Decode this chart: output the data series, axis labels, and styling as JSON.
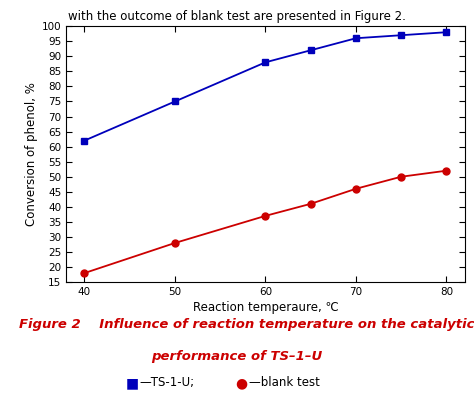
{
  "blue_x": [
    40,
    50,
    60,
    65,
    70,
    75,
    80
  ],
  "blue_y": [
    62,
    75,
    88,
    92,
    96,
    97,
    98
  ],
  "red_x": [
    40,
    50,
    60,
    65,
    70,
    75,
    80
  ],
  "red_y": [
    18,
    28,
    37,
    41,
    46,
    50,
    52
  ],
  "blue_color": "#0000BB",
  "red_color": "#CC0000",
  "xlabel": "Reaction temperaure, ℃",
  "ylabel": "Conversion of phenol, %",
  "xlim": [
    38,
    82
  ],
  "ylim": [
    15,
    100
  ],
  "xticks": [
    40,
    50,
    60,
    70,
    80
  ],
  "yticks": [
    15,
    20,
    25,
    30,
    35,
    40,
    45,
    50,
    55,
    60,
    65,
    70,
    75,
    80,
    85,
    90,
    95,
    100
  ],
  "figure_title_line1": "Figure 2    Influence of reaction temperature on the catalytic",
  "figure_title_line2": "performance of TS–1–U",
  "legend_ts1u": "TS-1-U",
  "legend_blank": "blank test",
  "title_color": "#CC0000",
  "title_fontsize": 9.5,
  "page_text": "with the outcome of blank test are presented in Figure 2.",
  "bg_color": "#ffffff"
}
